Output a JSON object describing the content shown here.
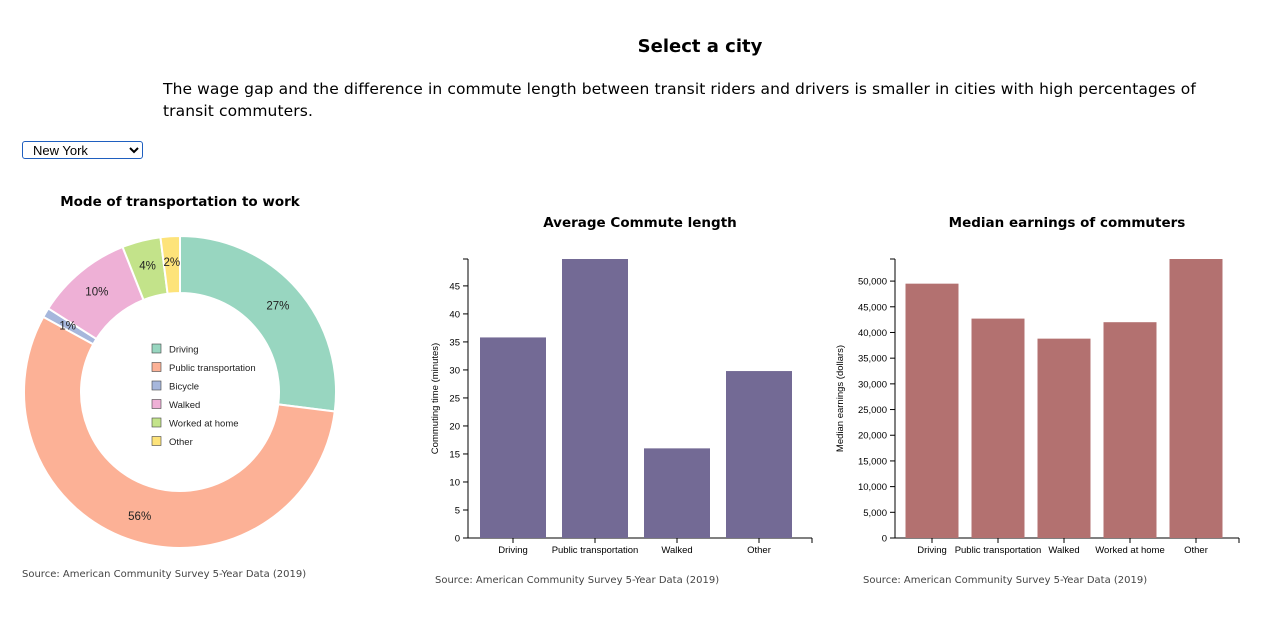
{
  "header": {
    "title": "Select a city",
    "intro": "The wage gap and the difference in commute length between transit riders and drivers is smaller in cities with high percentages of transit commuters."
  },
  "city_select": {
    "selected": "New York"
  },
  "sources": {
    "left": "Source: American Community Survey 5-Year Data (2019)",
    "middle": "Source: American Community Survey 5-Year Data (2019)",
    "right": "Source: American Community Survey 5-Year Data (2019)"
  },
  "chart_data": [
    {
      "type": "pie",
      "title": "Mode of transportation to work",
      "categories": [
        "Driving",
        "Public transportation",
        "Bicycle",
        "Walked",
        "Worked at home",
        "Other"
      ],
      "values": [
        27,
        56,
        1,
        10,
        4,
        2
      ],
      "labels": [
        "27%",
        "56%",
        "1%",
        "10%",
        "4%",
        "2%"
      ],
      "colors": [
        "#98d6c0",
        "#fcb196",
        "#a6b7dc",
        "#eeb0d6",
        "#c3e38a",
        "#fde37a"
      ],
      "legend": "center"
    },
    {
      "type": "bar",
      "title": "Average Commute length",
      "ylabel": "Commuting time (minutes)",
      "categories": [
        "Driving",
        "Public transportation",
        "Walked",
        "Other"
      ],
      "values": [
        35.8,
        49.8,
        16,
        29.8
      ],
      "ylim": [
        0,
        49.8
      ],
      "yticks": [
        0,
        5,
        10,
        15,
        20,
        25,
        30,
        35,
        40,
        45
      ],
      "color": "#736a95"
    },
    {
      "type": "bar",
      "title": "Median earnings of commuters",
      "ylabel": "Median earnings (dollars)",
      "categories": [
        "Driving",
        "Public transportation",
        "Walked",
        "Worked at home",
        "Other"
      ],
      "values": [
        49500,
        42700,
        38800,
        42000,
        54300
      ],
      "ylim": [
        0,
        54300
      ],
      "yticks": [
        0,
        5000,
        10000,
        15000,
        20000,
        25000,
        30000,
        35000,
        40000,
        45000,
        50000
      ],
      "ytick_labels": [
        "0",
        "5,000",
        "10,000",
        "15,000",
        "20,000",
        "25,000",
        "30,000",
        "35,000",
        "40,000",
        "45,000",
        "50,000"
      ],
      "color": "#b37170"
    }
  ]
}
